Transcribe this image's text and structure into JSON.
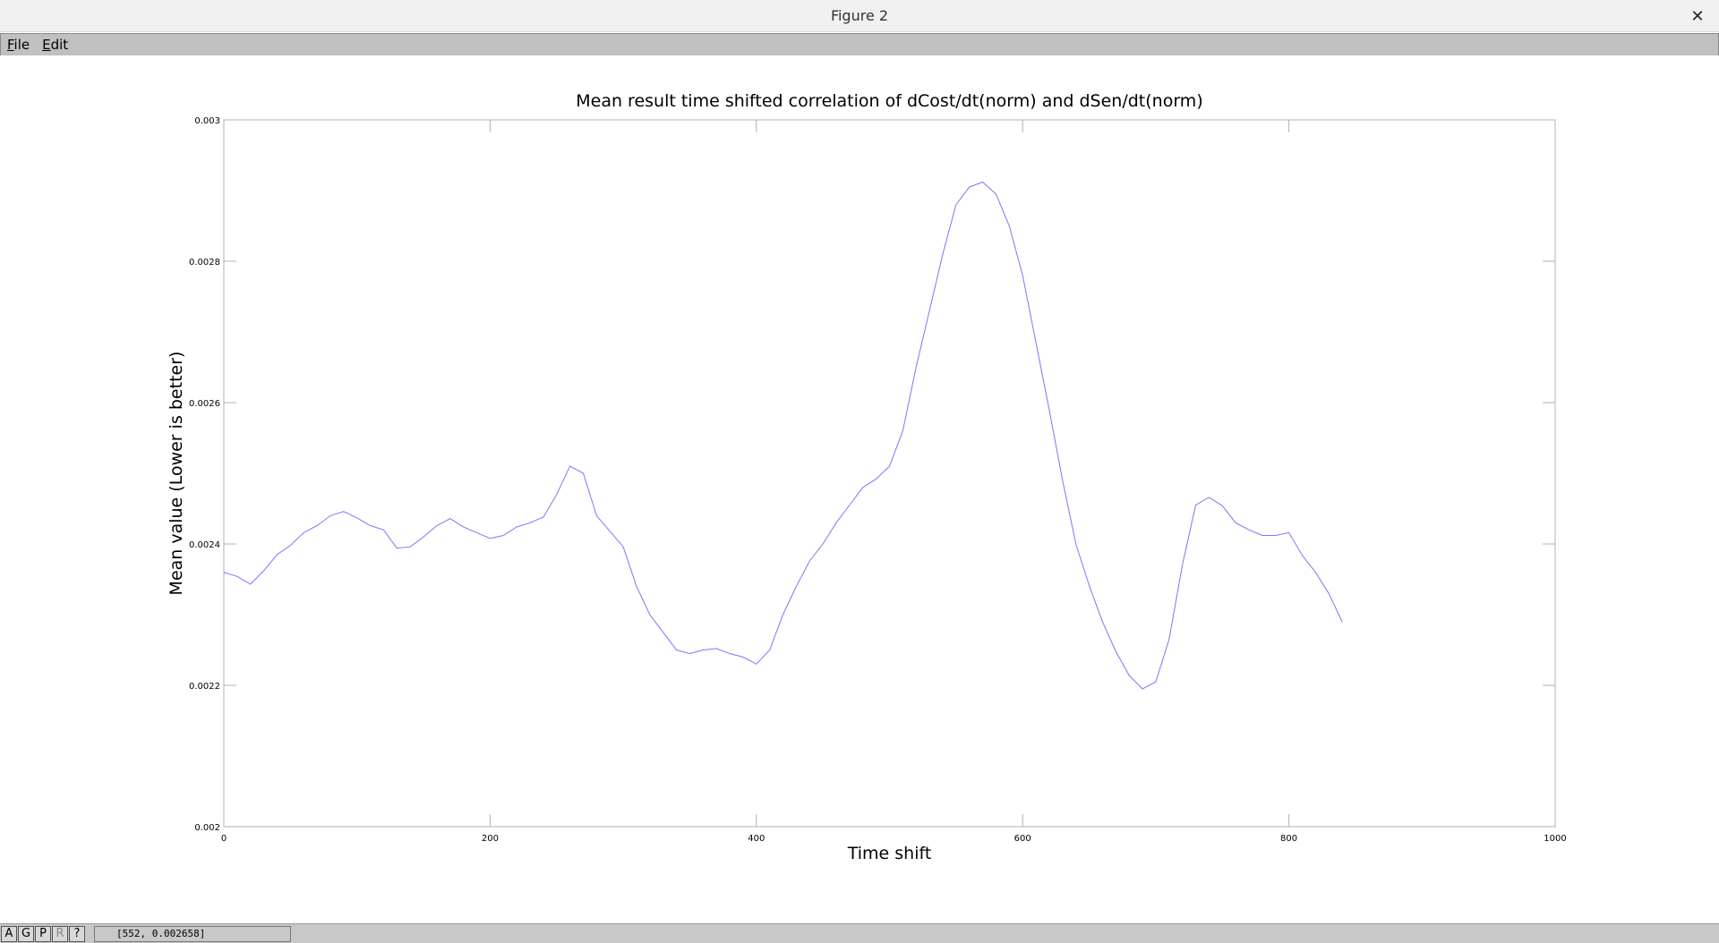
{
  "window": {
    "title": "Figure 2",
    "close_glyph": "✕"
  },
  "menu": [
    {
      "label": "File",
      "accel": "F",
      "rest": "ile"
    },
    {
      "label": "Edit",
      "accel": "E",
      "rest": "dit"
    }
  ],
  "toolbar": {
    "buttons": [
      {
        "label": "A",
        "enabled": true
      },
      {
        "label": "G",
        "enabled": true
      },
      {
        "label": "P",
        "enabled": true
      },
      {
        "label": "R",
        "enabled": false
      },
      {
        "label": "?",
        "enabled": true
      }
    ],
    "coords": "[552, 0.002658]"
  },
  "chart_data": {
    "type": "line",
    "title": "Mean result time shifted correlation of dCost/dt(norm) and dSen/dt(norm)",
    "xlabel": "Time shift",
    "ylabel": "Mean value (Lower is better)",
    "xlim": [
      0,
      1000
    ],
    "ylim": [
      0.002,
      0.003
    ],
    "xticks": [
      0,
      200,
      400,
      600,
      800,
      1000
    ],
    "xtick_labels": [
      "0",
      "200",
      "400",
      "600",
      "800",
      "1000"
    ],
    "yticks": [
      0.002,
      0.0022,
      0.0024,
      0.0026,
      0.0028,
      0.003
    ],
    "ytick_labels": [
      "0.002",
      "0.0022",
      "0.0024",
      "0.0026",
      "0.0028",
      "0.003"
    ],
    "grid": false,
    "line_color": "#7777ff",
    "series": [
      {
        "x": [
          0,
          10,
          20,
          30,
          40,
          50,
          60,
          70,
          80,
          90,
          100,
          110,
          120,
          130,
          140,
          150,
          160,
          170,
          180,
          190,
          200,
          210,
          220,
          230,
          240,
          250,
          260,
          270,
          280,
          290,
          300,
          310,
          320,
          330,
          340,
          350,
          360,
          370,
          380,
          390,
          400,
          410,
          420,
          430,
          440,
          450,
          460,
          470,
          480,
          490,
          500,
          510,
          520,
          530,
          540,
          550,
          560,
          570,
          580,
          590,
          600,
          610,
          620,
          630,
          640,
          650,
          660,
          670,
          680,
          690,
          700,
          710,
          720,
          730,
          740,
          750,
          760,
          770,
          780,
          790,
          800,
          810,
          820,
          830,
          840
        ],
        "y": [
          0.00236,
          0.002354,
          0.002343,
          0.002362,
          0.002385,
          0.002398,
          0.002416,
          0.002426,
          0.00244,
          0.002446,
          0.002437,
          0.002426,
          0.00242,
          0.002394,
          0.002396,
          0.00241,
          0.002426,
          0.002436,
          0.002424,
          0.002416,
          0.002408,
          0.002412,
          0.002424,
          0.00243,
          0.002438,
          0.00247,
          0.00251,
          0.0025,
          0.00244,
          0.002418,
          0.002396,
          0.00234,
          0.0023,
          0.002275,
          0.00225,
          0.002245,
          0.00225,
          0.002252,
          0.002245,
          0.00224,
          0.00223,
          0.00225,
          0.0023,
          0.00234,
          0.002376,
          0.0024,
          0.00243,
          0.002455,
          0.00248,
          0.002492,
          0.00251,
          0.00256,
          0.00265,
          0.00273,
          0.00281,
          0.00288,
          0.002905,
          0.002912,
          0.002895,
          0.00285,
          0.00278,
          0.002685,
          0.00259,
          0.00249,
          0.0024,
          0.002341,
          0.00229,
          0.002248,
          0.002214,
          0.002195,
          0.002205,
          0.002265,
          0.00237,
          0.002455,
          0.002466,
          0.002454,
          0.00243,
          0.00242,
          0.002412,
          0.002412,
          0.002416,
          0.002384,
          0.00236,
          0.00233,
          0.00229
        ]
      }
    ]
  }
}
